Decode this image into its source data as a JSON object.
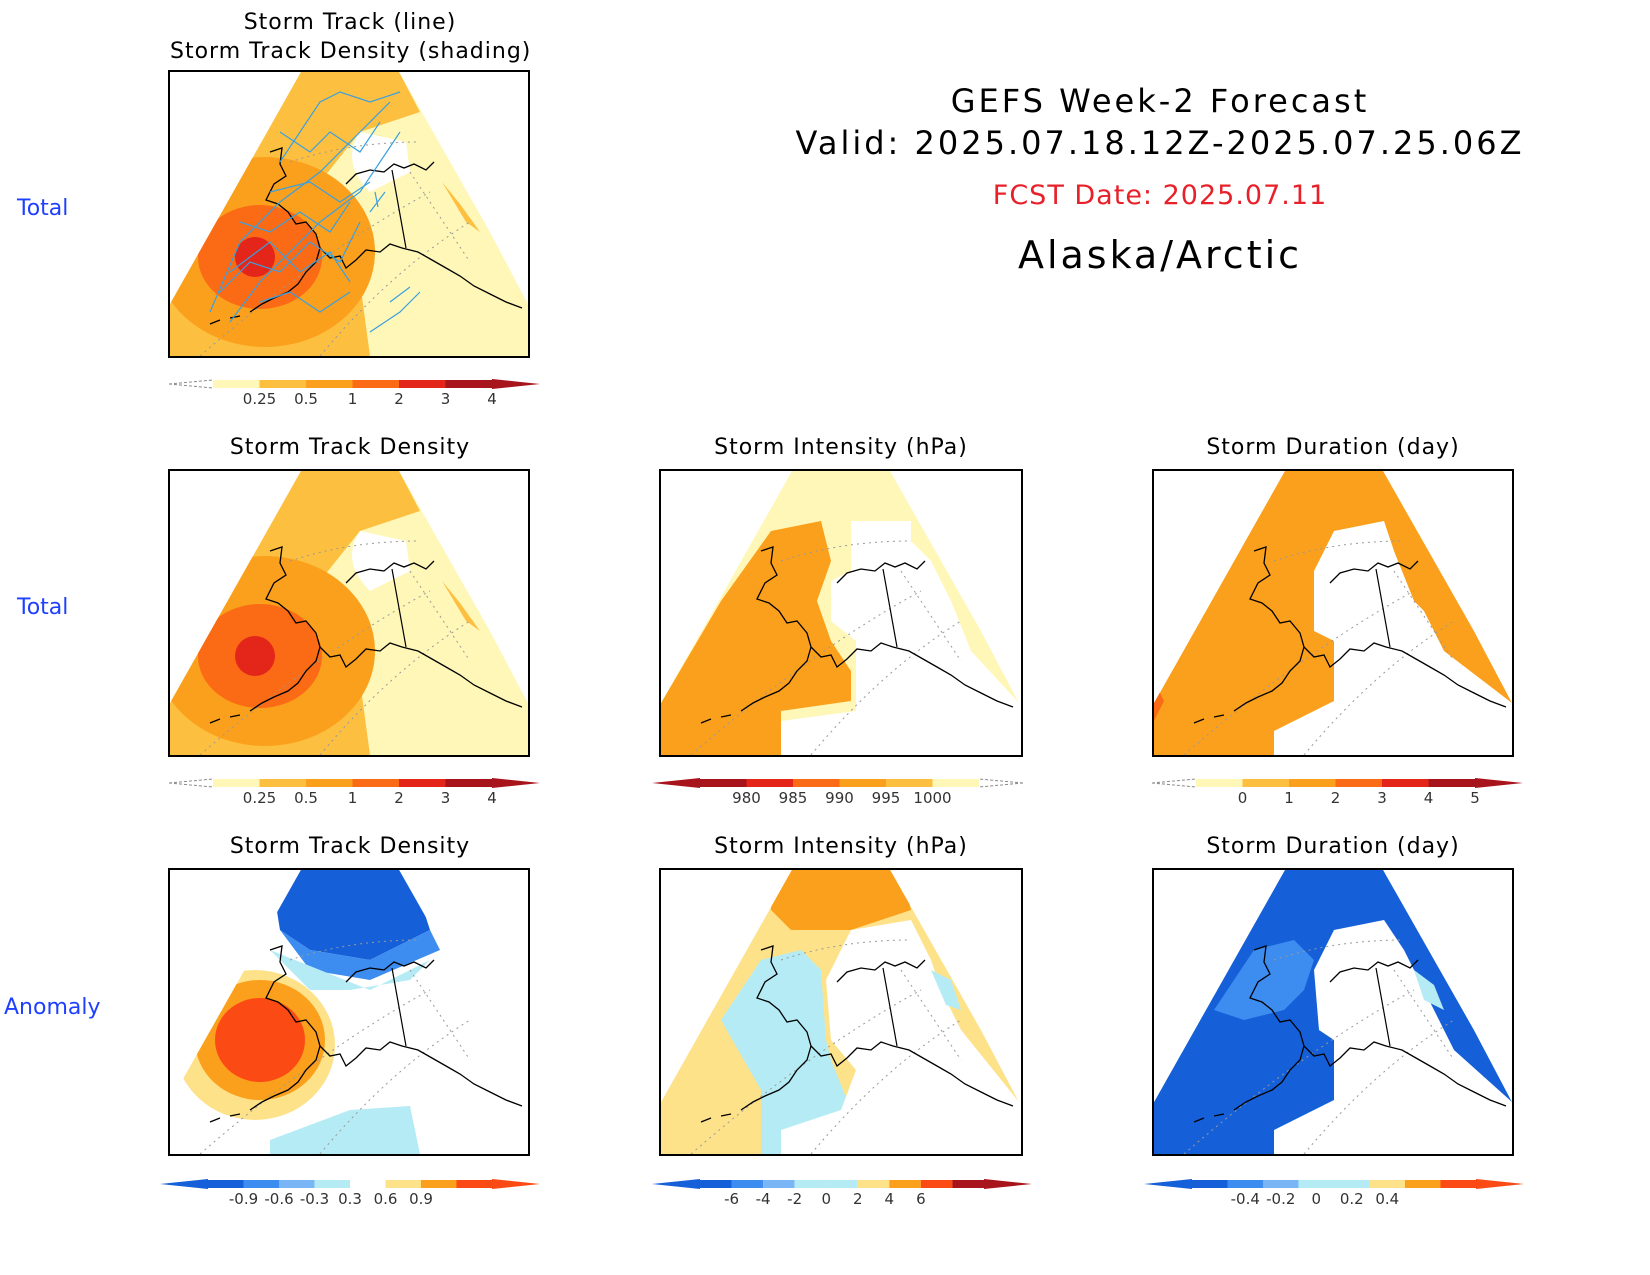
{
  "header": {
    "title": "GEFS Week-2 Forecast",
    "valid": "Valid: 2025.07.18.12Z-2025.07.25.06Z",
    "fcst_date": "FCST Date: 2025.07.11",
    "region": "Alaska/Arctic"
  },
  "row_labels": [
    "Total",
    "Total",
    "Anomaly"
  ],
  "panels": {
    "top": {
      "title_line1": "Storm Track (line)",
      "title_line2": "Storm Track Density (shading)"
    },
    "density_total": {
      "title": "Storm Track Density"
    },
    "intensity_total": {
      "title": "Storm Intensity (hPa)"
    },
    "duration_total": {
      "title": "Storm Duration (day)"
    },
    "density_anom": {
      "title": "Storm Track Density"
    },
    "intensity_anom": {
      "title": "Storm Intensity (hPa)"
    },
    "duration_anom": {
      "title": "Storm Duration (day)"
    }
  },
  "colorbars": {
    "density": {
      "labels": [
        "0.25",
        "0.5",
        "1",
        "2",
        "3",
        "4"
      ],
      "colors": [
        "#fff7b8",
        "#fdbf3f",
        "#fba01c",
        "#fb6a14",
        "#e3251a",
        "#a8141c"
      ]
    },
    "intensity": {
      "labels": [
        "980",
        "985",
        "990",
        "995",
        "1000"
      ],
      "colors": [
        "#a8141c",
        "#e3251a",
        "#fb6a14",
        "#fba01c",
        "#fdbf3f",
        "#fff7b8"
      ]
    },
    "duration": {
      "labels": [
        "0",
        "1",
        "2",
        "3",
        "4",
        "5"
      ],
      "colors": [
        "#fff7b8",
        "#fdbf3f",
        "#fba01c",
        "#fb6a14",
        "#e3251a",
        "#a8141c"
      ]
    },
    "density_anom": {
      "labels": [
        "-0.9",
        "-0.6",
        "-0.3",
        "0.3",
        "0.6",
        "0.9"
      ],
      "colors": [
        "#1560d8",
        "#3d8cf0",
        "#7ab6f5",
        "#b4ebf5",
        "#ffffff",
        "#fde28a",
        "#fba01c",
        "#fb4a14"
      ]
    },
    "intensity_anom": {
      "labels": [
        "-6",
        "-4",
        "-2",
        "0",
        "2",
        "4",
        "6"
      ],
      "colors": [
        "#1560d8",
        "#3d8cf0",
        "#7ab6f5",
        "#b4ebf5",
        "#b4ebf5",
        "#fde28a",
        "#fba01c",
        "#fb4a14",
        "#a8141c"
      ]
    },
    "duration_anom": {
      "labels": [
        "-0.4",
        "-0.2",
        "0",
        "0.2",
        "0.4"
      ],
      "colors": [
        "#1560d8",
        "#3d8cf0",
        "#7ab6f5",
        "#b4ebf5",
        "#b4ebf5",
        "#fde28a",
        "#fba01c",
        "#fb4a14"
      ]
    }
  }
}
